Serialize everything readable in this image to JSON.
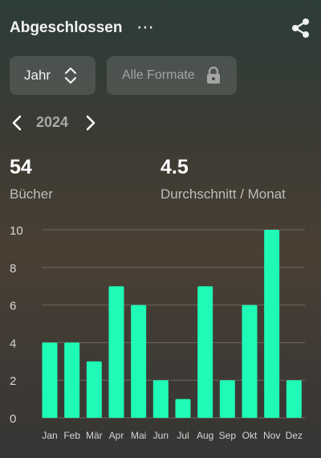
{
  "header": {
    "title": "Abgeschlossen",
    "more_label": "⋯",
    "share_icon": "share-icon"
  },
  "filters": {
    "period": {
      "label": "Jahr",
      "icon": "up-down-chevron-icon"
    },
    "format": {
      "label": "Alle Formate",
      "icon": "lock-icon"
    }
  },
  "year_nav": {
    "year": "2024",
    "prev_icon": "chevron-left-icon",
    "next_icon": "chevron-right-icon"
  },
  "stats": {
    "books": {
      "value": "54",
      "caption": "Bücher"
    },
    "average": {
      "value": "4.5",
      "caption": "Durchschnitt / Monat"
    }
  },
  "colors": {
    "bar": "#1ffbb6",
    "grid": "#6d675e",
    "axis_text": "#d6d6d6"
  },
  "chart_data": {
    "type": "bar",
    "categories": [
      "Jan",
      "Feb",
      "Mär",
      "Apr",
      "Mai",
      "Jun",
      "Jul",
      "Aug",
      "Sep",
      "Okt",
      "Nov",
      "Dez"
    ],
    "values": [
      4,
      4,
      3,
      7,
      6,
      2,
      1,
      7,
      2,
      6,
      10,
      2
    ],
    "yticks": [
      0,
      2,
      4,
      6,
      8,
      10
    ],
    "ylim": [
      0,
      10
    ],
    "grid": true,
    "title": "",
    "xlabel": "",
    "ylabel": ""
  }
}
